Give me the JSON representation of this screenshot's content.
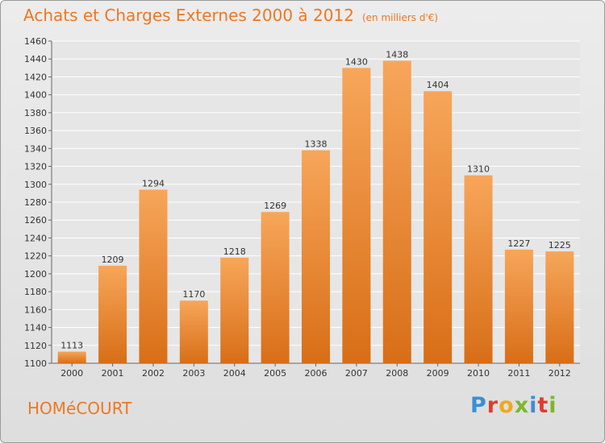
{
  "title": "Achats et Charges Externes 2000 à 2012",
  "unit_note": "(en milliers d'€)",
  "commune": "HOMéCOURT",
  "logo": {
    "text": "Proxiti",
    "letters": [
      {
        "ch": "P",
        "color": "#3b8fd4"
      },
      {
        "ch": "r",
        "color": "#e23c2b"
      },
      {
        "ch": "o",
        "color": "#f0a91b"
      },
      {
        "ch": "x",
        "color": "#7ab929"
      },
      {
        "ch": "i",
        "color": "#3b8fd4"
      },
      {
        "ch": "t",
        "color": "#e23c2b"
      },
      {
        "ch": "i",
        "color": "#7ab929"
      }
    ]
  },
  "colors": {
    "accent": "#ee7722",
    "bar_top": "#f7a65a",
    "bar_bottom": "#d86e17",
    "grid": "#ffffff"
  },
  "chart_data": {
    "type": "bar",
    "categories": [
      "2000",
      "2001",
      "2002",
      "2003",
      "2004",
      "2005",
      "2006",
      "2007",
      "2008",
      "2009",
      "2010",
      "2011",
      "2012"
    ],
    "values": [
      1113,
      1209,
      1294,
      1170,
      1218,
      1269,
      1338,
      1430,
      1438,
      1404,
      1310,
      1227,
      1225
    ],
    "ylim": [
      1100,
      1460
    ],
    "yticks": [
      1100,
      1120,
      1140,
      1160,
      1180,
      1200,
      1220,
      1240,
      1260,
      1280,
      1300,
      1320,
      1340,
      1360,
      1380,
      1400,
      1420,
      1440,
      1460
    ],
    "grid": true
  }
}
